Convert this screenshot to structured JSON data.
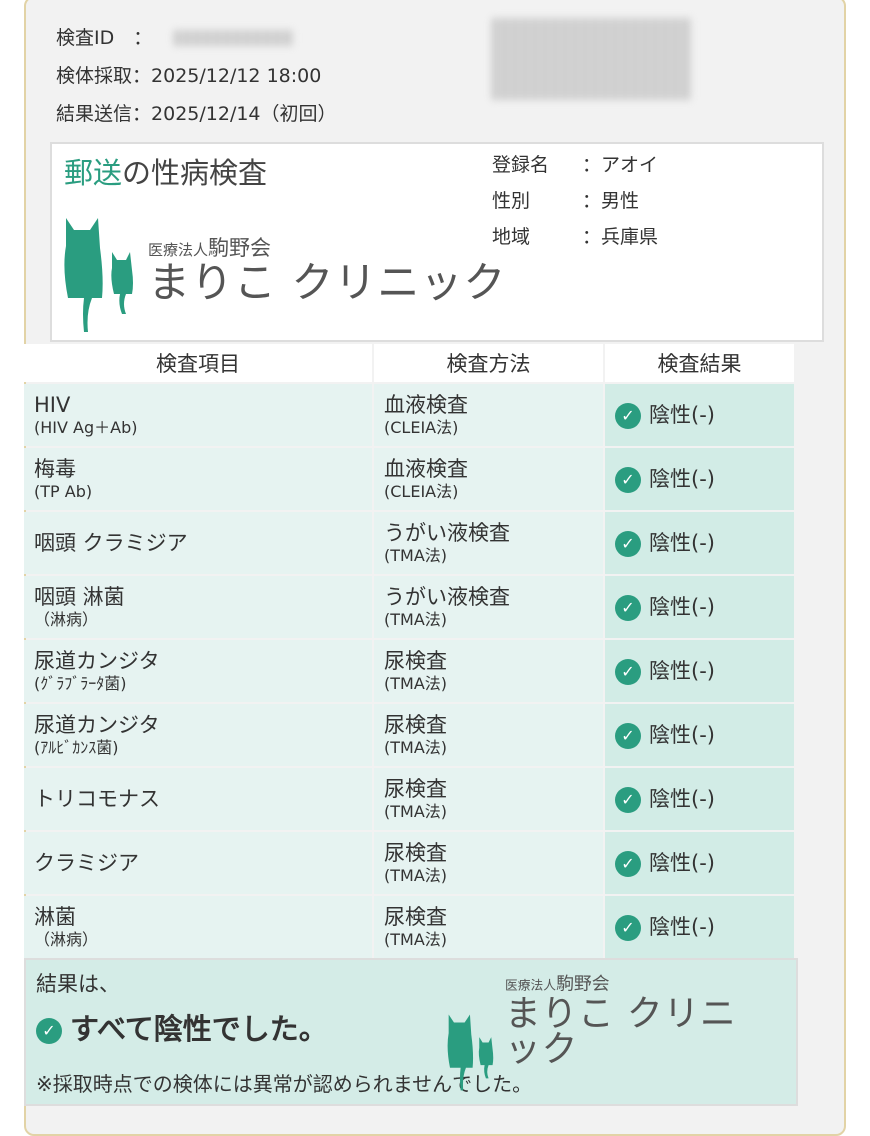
{
  "meta": {
    "id_label": "検査ID　：",
    "collect_label": "検体採取：",
    "collect_value": "2025/12/12  18:00",
    "sent_label": "結果送信：",
    "sent_value": "2025/12/14（初回）"
  },
  "header": {
    "title_accent": "郵送",
    "title_rest": "の性病検査",
    "name_label": "登録名",
    "name_value": "：アオイ",
    "sex_label": "性別",
    "sex_value": "：男性",
    "region_label": "地域",
    "region_value": "：兵庫県"
  },
  "logo": {
    "org_prefix": "医療法人",
    "org": "駒野会",
    "clinic": "まりこ クリニック"
  },
  "colors": {
    "accent": "#2a9d80"
  },
  "table": {
    "headers": [
      "検査項目",
      "検査方法",
      "検査結果"
    ],
    "rows": [
      {
        "item": "HIV",
        "item_sub": "(HIV Ag＋Ab)",
        "method": "血液検査",
        "method_sub": "(CLEIA法)",
        "result": "陰性(-)"
      },
      {
        "item": "梅毒",
        "item_sub": "(TP Ab)",
        "method": "血液検査",
        "method_sub": "(CLEIA法)",
        "result": "陰性(-)"
      },
      {
        "item": "咽頭 クラミジア",
        "item_sub": "",
        "method": "うがい液検査",
        "method_sub": "(TMA法)",
        "result": "陰性(-)"
      },
      {
        "item": "咽頭 淋菌",
        "item_sub": "（淋病）",
        "method": "うがい液検査",
        "method_sub": "(TMA法)",
        "result": "陰性(-)"
      },
      {
        "item": "尿道カンジタ",
        "item_sub": "(ｸﾞﾗﾌﾞﾗｰﾀ菌)",
        "method": "尿検査",
        "method_sub": "(TMA法)",
        "result": "陰性(-)"
      },
      {
        "item": "尿道カンジタ",
        "item_sub": "(ｱﾙﾋﾞｶﾝｽ菌)",
        "method": "尿検査",
        "method_sub": "(TMA法)",
        "result": "陰性(-)"
      },
      {
        "item": "トリコモナス",
        "item_sub": "",
        "method": "尿検査",
        "method_sub": "(TMA法)",
        "result": "陰性(-)"
      },
      {
        "item": "クラミジア",
        "item_sub": "",
        "method": "尿検査",
        "method_sub": "(TMA法)",
        "result": "陰性(-)"
      },
      {
        "item": "淋菌",
        "item_sub": "（淋病）",
        "method": "尿検査",
        "method_sub": "(TMA法)",
        "result": "陰性(-)"
      }
    ]
  },
  "summary": {
    "lead": "結果は、",
    "headline": "すべて陰性でした。",
    "note": "※採取時点での検体には異常が認められませんでした。"
  }
}
